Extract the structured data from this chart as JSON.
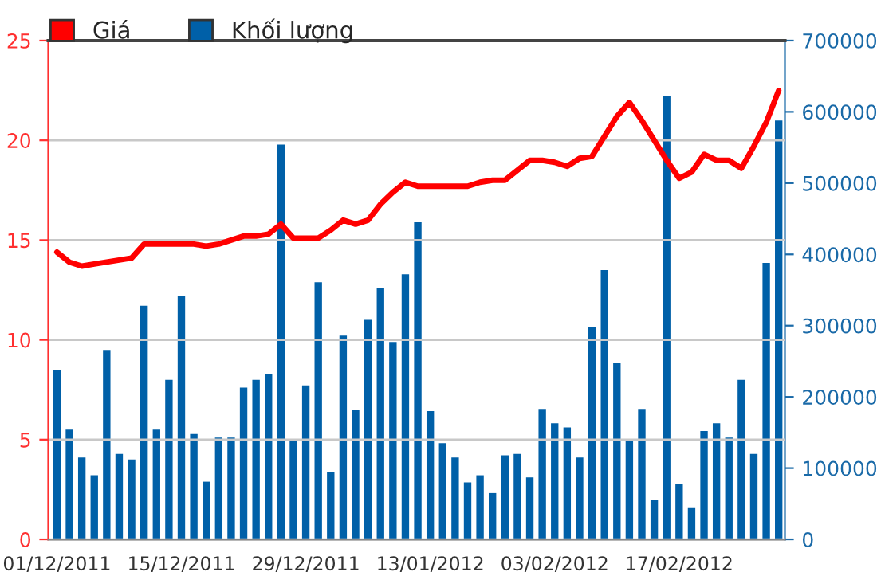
{
  "chart_data": {
    "type": "line",
    "categories": [
      "01/12/2011",
      null,
      null,
      null,
      null,
      null,
      null,
      null,
      null,
      null,
      "15/12/2011",
      null,
      null,
      null,
      null,
      null,
      null,
      null,
      null,
      null,
      "29/12/2011",
      null,
      null,
      null,
      null,
      null,
      null,
      null,
      null,
      null,
      "13/01/2012",
      null,
      null,
      null,
      null,
      null,
      null,
      null,
      null,
      null,
      "03/02/2012",
      null,
      null,
      null,
      null,
      null,
      null,
      null,
      null,
      null,
      "17/02/2012",
      null,
      null,
      null,
      null,
      null,
      null,
      null,
      null
    ],
    "series": [
      {
        "name": "Giá",
        "color": "#ff0000",
        "values": [
          14.4,
          13.9,
          13.7,
          13.8,
          13.9,
          14.0,
          14.1,
          14.8,
          14.8,
          14.8,
          14.8,
          14.8,
          14.7,
          14.8,
          15.0,
          15.2,
          15.2,
          15.3,
          15.8,
          15.1,
          15.1,
          15.1,
          15.5,
          16.0,
          15.8,
          16.0,
          16.8,
          17.4,
          17.9,
          17.7,
          17.7,
          17.7,
          17.7,
          17.7,
          17.9,
          18.0,
          18.0,
          18.5,
          19.0,
          19.0,
          18.9,
          18.7,
          19.1,
          19.2,
          20.2,
          21.2,
          21.9,
          21.0,
          20.0,
          19.0,
          18.1,
          18.4,
          19.3,
          19.0,
          19.0,
          18.6,
          19.7,
          20.9,
          22.5
        ]
      },
      {
        "name": "Khối lượng",
        "type": "bar",
        "axis": "y2",
        "color": "#0060a8",
        "values": [
          238000,
          154000,
          115000,
          90000,
          266000,
          120000,
          112000,
          328000,
          154000,
          224000,
          342000,
          148000,
          81000,
          143000,
          143000,
          213000,
          224000,
          232000,
          554000,
          140000,
          216000,
          361000,
          95000,
          286000,
          182000,
          308000,
          353000,
          277000,
          372000,
          445000,
          180000,
          135000,
          115000,
          80000,
          90000,
          65000,
          118000,
          120000,
          87000,
          183000,
          163000,
          157000,
          115000,
          298000,
          378000,
          247000,
          140000,
          183000,
          55000,
          622000,
          78000,
          45000,
          152000,
          163000,
          143000,
          224000,
          120000,
          388000,
          588000
        ]
      }
    ],
    "ylim": [
      0,
      25
    ],
    "yticks": [
      0,
      5,
      10,
      15,
      20,
      25
    ],
    "y2lim": [
      0,
      700000
    ],
    "y2ticks": [
      0,
      100000,
      200000,
      300000,
      400000,
      500000,
      600000,
      700000
    ],
    "grid": "y",
    "legend": "top left",
    "marker": "none",
    "line_style": "solid"
  }
}
